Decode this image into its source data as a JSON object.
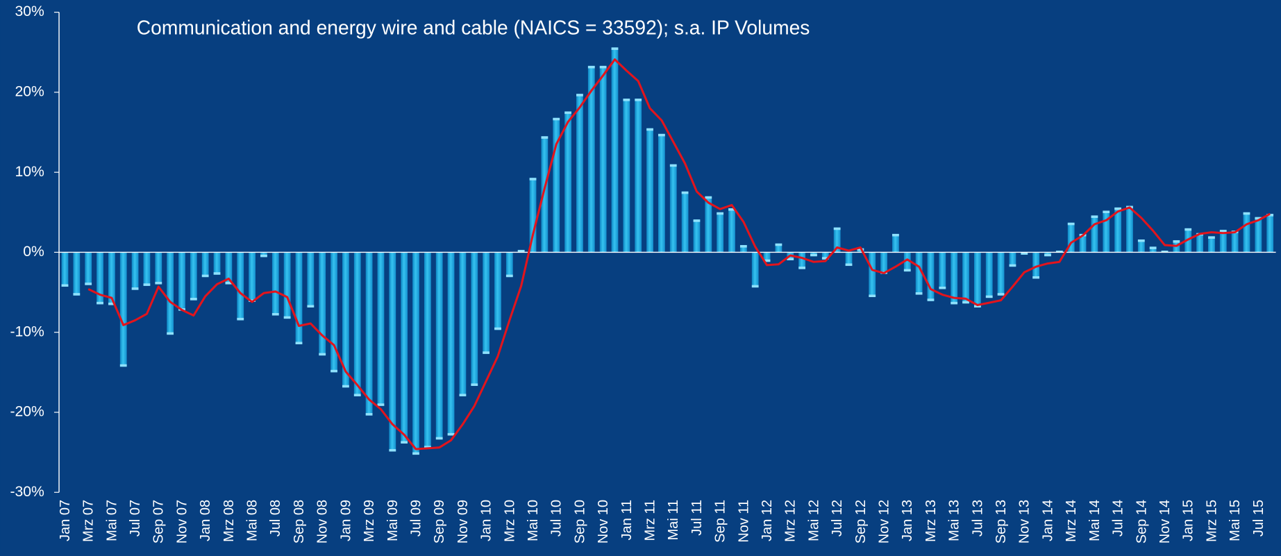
{
  "chart_data": {
    "type": "bar",
    "title": "Communication and energy wire and cable  (NAICS = 33592); s.a. IP Volumes",
    "categories": [
      "Jan 07",
      null,
      "Mrz 07",
      null,
      "Mai 07",
      null,
      "Jul 07",
      null,
      "Sep 07",
      null,
      "Nov 07",
      null,
      "Jan 08",
      null,
      "Mrz 08",
      null,
      "Mai 08",
      null,
      "Jul 08",
      null,
      "Sep 08",
      null,
      "Nov 08",
      null,
      "Jan 09",
      null,
      "Mrz 09",
      null,
      "Mai 09",
      null,
      "Jul 09",
      null,
      "Sep 09",
      null,
      "Nov 09",
      null,
      "Jan 10",
      null,
      "Mrz 10",
      null,
      "Mai 10",
      null,
      "Jul 10",
      null,
      "Sep 10",
      null,
      "Nov 10",
      null,
      "Jan 11",
      null,
      "Mrz 11",
      null,
      "Mai 11",
      null,
      "Jul 11",
      null,
      "Sep 11",
      null,
      "Nov 11",
      null,
      "Jan 12",
      null,
      "Mrz 12",
      null,
      "Mai 12",
      null,
      "Jul 12",
      null,
      "Sep 12",
      null,
      "Nov 12",
      null,
      "Jan 13",
      null,
      "Mrz 13",
      null,
      "Mai 13",
      null,
      "Jul 13",
      null,
      "Sep 13",
      null,
      "Nov 13",
      null,
      "Jan 14",
      null,
      "Mrz 14",
      null,
      "Mai 14",
      null,
      "Jul 14",
      null,
      "Sep 14",
      null,
      "Nov 14",
      null,
      "Jan 15",
      null,
      "Mrz 15",
      null,
      "Mai 15",
      null,
      "Jul 15",
      null
    ],
    "series": [
      {
        "type": "bar",
        "color": "#1eaae2",
        "values": [
          -4.3,
          -5.4,
          -4.1,
          -6.5,
          -6.6,
          -14.3,
          -4.7,
          -4.2,
          -4.0,
          -10.3,
          -7.3,
          -6.0,
          -3.1,
          -2.8,
          -4.0,
          -8.5,
          -6.2,
          -0.6,
          -7.9,
          -8.3,
          -11.5,
          -6.9,
          -12.9,
          -15.0,
          -16.9,
          -18.0,
          -20.4,
          -19.2,
          -24.9,
          -23.9,
          -25.3,
          -24.5,
          -23.4,
          -22.9,
          -18.0,
          -16.7,
          -12.7,
          -9.7,
          -3.1,
          0.3,
          9.3,
          14.5,
          16.8,
          17.6,
          19.8,
          23.3,
          23.3,
          25.6,
          19.2,
          19.2,
          15.5,
          14.8,
          11.0,
          7.6,
          4.1,
          7.0,
          5.0,
          5.5,
          0.9,
          -4.4,
          -1.2,
          1.1,
          -1.0,
          -2.1,
          -0.5,
          -0.9,
          3.1,
          -1.7,
          0.5,
          -5.6,
          -2.7,
          2.3,
          -2.4,
          -5.3,
          -6.1,
          -4.6,
          -6.5,
          -6.4,
          -6.9,
          -5.7,
          -5.4,
          -1.8,
          -0.3,
          -3.3,
          -0.5,
          0.2,
          3.7,
          2.3,
          4.6,
          5.2,
          5.6,
          5.8,
          1.6,
          0.7,
          0.2,
          1.5,
          3.0,
          2.4,
          2.0,
          2.8,
          2.7,
          5.0,
          4.4,
          4.8
        ]
      },
      {
        "type": "line",
        "color": "#e3141c",
        "values": [
          null,
          null,
          -4.6,
          -5.3,
          -5.7,
          -9.1,
          -8.5,
          -7.7,
          -4.3,
          -6.2,
          -7.2,
          -7.9,
          -5.5,
          -4.0,
          -3.3,
          -5.1,
          -6.2,
          -5.1,
          -4.9,
          -5.6,
          -9.2,
          -8.9,
          -10.4,
          -11.6,
          -14.9,
          -16.6,
          -18.4,
          -19.6,
          -21.5,
          -22.8,
          -24.6,
          -24.5,
          -24.4,
          -23.5,
          -21.5,
          -19.2,
          -16.1,
          -13.0,
          -8.5,
          -4.2,
          2.2,
          8.0,
          13.5,
          16.3,
          18.1,
          20.2,
          22.1,
          24.1,
          22.7,
          21.4,
          18.0,
          16.5,
          13.8,
          11.1,
          7.6,
          6.2,
          5.4,
          5.9,
          3.8,
          0.7,
          -1.6,
          -1.5,
          -0.4,
          -0.7,
          -1.2,
          -1.1,
          0.6,
          0.2,
          0.6,
          -2.2,
          -2.6,
          -1.8,
          -0.9,
          -1.8,
          -4.6,
          -5.3,
          -5.7,
          -5.8,
          -6.6,
          -6.3,
          -6.0,
          -4.3,
          -2.5,
          -1.8,
          -1.4,
          -1.2,
          1.2,
          2.1,
          3.5,
          4.0,
          5.1,
          5.6,
          4.3,
          2.7,
          0.9,
          0.8,
          1.6,
          2.3,
          2.5,
          2.4,
          2.5,
          3.5,
          4.0,
          4.8
        ]
      }
    ],
    "ylim": [
      -30,
      30
    ],
    "yticks": [
      {
        "value": -30,
        "label": "-30%"
      },
      {
        "value": -20,
        "label": "-20%"
      },
      {
        "value": -10,
        "label": "-10%"
      },
      {
        "value": 0,
        "label": "0%"
      },
      {
        "value": 10,
        "label": "10%"
      },
      {
        "value": 20,
        "label": "20%"
      },
      {
        "value": 30,
        "label": "30%"
      }
    ],
    "grid": false
  }
}
